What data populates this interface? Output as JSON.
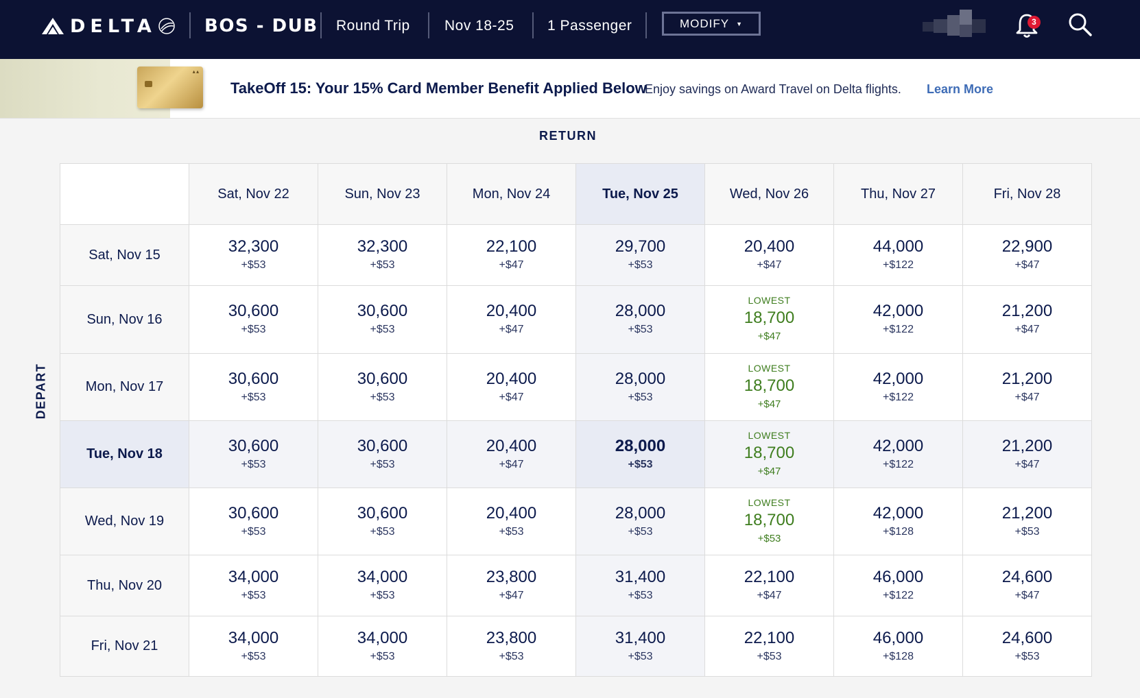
{
  "header": {
    "brand": "DELTA",
    "route": "BOS - DUB",
    "trip_type": "Round Trip",
    "dates": "Nov 18-25",
    "passengers": "1 Passenger",
    "modify_label": "MODIFY",
    "notification_count": "3"
  },
  "promo": {
    "title": "TakeOff 15: Your 15% Card Member Benefit Applied Below",
    "subtitle": "Enjoy savings on Award Travel on Delta flights.",
    "link_label": "Learn More"
  },
  "grid": {
    "return_label": "RETURN",
    "depart_label": "DEPART",
    "lowest_label": "LOWEST",
    "columns": [
      "Sat, Nov 22",
      "Sun, Nov 23",
      "Mon, Nov 24",
      "Tue, Nov 25",
      "Wed, Nov 26",
      "Thu, Nov 27",
      "Fri, Nov 28"
    ],
    "selected_column": 3,
    "selected_row": 3,
    "rows": [
      {
        "date": "Sat, Nov 15",
        "cells": [
          {
            "miles": "32,300",
            "fee": "+$53"
          },
          {
            "miles": "32,300",
            "fee": "+$53"
          },
          {
            "miles": "22,100",
            "fee": "+$47"
          },
          {
            "miles": "29,700",
            "fee": "+$53"
          },
          {
            "miles": "20,400",
            "fee": "+$47"
          },
          {
            "miles": "44,000",
            "fee": "+$122"
          },
          {
            "miles": "22,900",
            "fee": "+$47"
          }
        ]
      },
      {
        "date": "Sun, Nov 16",
        "cells": [
          {
            "miles": "30,600",
            "fee": "+$53"
          },
          {
            "miles": "30,600",
            "fee": "+$53"
          },
          {
            "miles": "20,400",
            "fee": "+$47"
          },
          {
            "miles": "28,000",
            "fee": "+$53"
          },
          {
            "miles": "18,700",
            "fee": "+$47",
            "lowest": true
          },
          {
            "miles": "42,000",
            "fee": "+$122"
          },
          {
            "miles": "21,200",
            "fee": "+$47"
          }
        ]
      },
      {
        "date": "Mon, Nov 17",
        "cells": [
          {
            "miles": "30,600",
            "fee": "+$53"
          },
          {
            "miles": "30,600",
            "fee": "+$53"
          },
          {
            "miles": "20,400",
            "fee": "+$47"
          },
          {
            "miles": "28,000",
            "fee": "+$53"
          },
          {
            "miles": "18,700",
            "fee": "+$47",
            "lowest": true
          },
          {
            "miles": "42,000",
            "fee": "+$122"
          },
          {
            "miles": "21,200",
            "fee": "+$47"
          }
        ]
      },
      {
        "date": "Tue, Nov 18",
        "cells": [
          {
            "miles": "30,600",
            "fee": "+$53"
          },
          {
            "miles": "30,600",
            "fee": "+$53"
          },
          {
            "miles": "20,400",
            "fee": "+$47"
          },
          {
            "miles": "28,000",
            "fee": "+$53"
          },
          {
            "miles": "18,700",
            "fee": "+$47",
            "lowest": true
          },
          {
            "miles": "42,000",
            "fee": "+$122"
          },
          {
            "miles": "21,200",
            "fee": "+$47"
          }
        ]
      },
      {
        "date": "Wed, Nov 19",
        "cells": [
          {
            "miles": "30,600",
            "fee": "+$53"
          },
          {
            "miles": "30,600",
            "fee": "+$53"
          },
          {
            "miles": "20,400",
            "fee": "+$53"
          },
          {
            "miles": "28,000",
            "fee": "+$53"
          },
          {
            "miles": "18,700",
            "fee": "+$53",
            "lowest": true
          },
          {
            "miles": "42,000",
            "fee": "+$128"
          },
          {
            "miles": "21,200",
            "fee": "+$53"
          }
        ]
      },
      {
        "date": "Thu, Nov 20",
        "cells": [
          {
            "miles": "34,000",
            "fee": "+$53"
          },
          {
            "miles": "34,000",
            "fee": "+$53"
          },
          {
            "miles": "23,800",
            "fee": "+$47"
          },
          {
            "miles": "31,400",
            "fee": "+$53"
          },
          {
            "miles": "22,100",
            "fee": "+$47"
          },
          {
            "miles": "46,000",
            "fee": "+$122"
          },
          {
            "miles": "24,600",
            "fee": "+$47"
          }
        ]
      },
      {
        "date": "Fri, Nov 21",
        "cells": [
          {
            "miles": "34,000",
            "fee": "+$53"
          },
          {
            "miles": "34,000",
            "fee": "+$53"
          },
          {
            "miles": "23,800",
            "fee": "+$53"
          },
          {
            "miles": "31,400",
            "fee": "+$53"
          },
          {
            "miles": "22,100",
            "fee": "+$53"
          },
          {
            "miles": "46,000",
            "fee": "+$128"
          },
          {
            "miles": "24,600",
            "fee": "+$53"
          }
        ]
      }
    ]
  }
}
